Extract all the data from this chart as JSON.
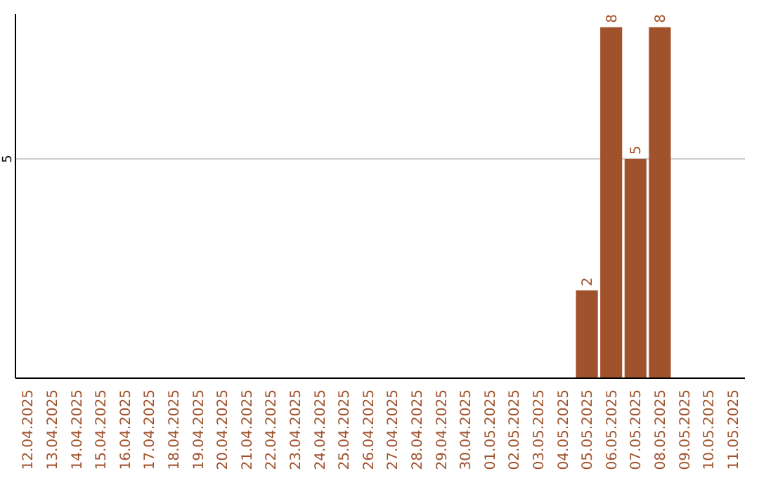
{
  "chart_data": {
    "type": "bar",
    "categories": [
      "12.04.2025",
      "13.04.2025",
      "14.04.2025",
      "15.04.2025",
      "16.04.2025",
      "17.04.2025",
      "18.04.2025",
      "19.04.2025",
      "20.04.2025",
      "21.04.2025",
      "22.04.2025",
      "23.04.2025",
      "24.04.2025",
      "25.04.2025",
      "26.04.2025",
      "27.04.2025",
      "28.04.2025",
      "29.04.2025",
      "30.04.2025",
      "01.05.2025",
      "02.05.2025",
      "03.05.2025",
      "04.05.2025",
      "05.05.2025",
      "06.05.2025",
      "07.05.2025",
      "08.05.2025",
      "09.05.2025",
      "10.05.2025",
      "11.05.2025"
    ],
    "values": [
      null,
      null,
      null,
      null,
      null,
      null,
      null,
      null,
      null,
      null,
      null,
      null,
      null,
      null,
      null,
      null,
      null,
      null,
      null,
      null,
      null,
      null,
      null,
      2,
      8,
      5,
      8,
      null,
      null,
      null
    ],
    "value_labels": [
      null,
      null,
      null,
      null,
      null,
      null,
      null,
      null,
      null,
      null,
      null,
      null,
      null,
      null,
      null,
      null,
      null,
      null,
      null,
      null,
      null,
      null,
      null,
      "2",
      "8",
      "5",
      "8",
      null,
      null,
      null
    ],
    "color": "#a0522d",
    "ylim": [
      0,
      8.3
    ],
    "yticks": [
      {
        "value": 0,
        "label": null
      },
      5
    ],
    "grid": "y"
  }
}
